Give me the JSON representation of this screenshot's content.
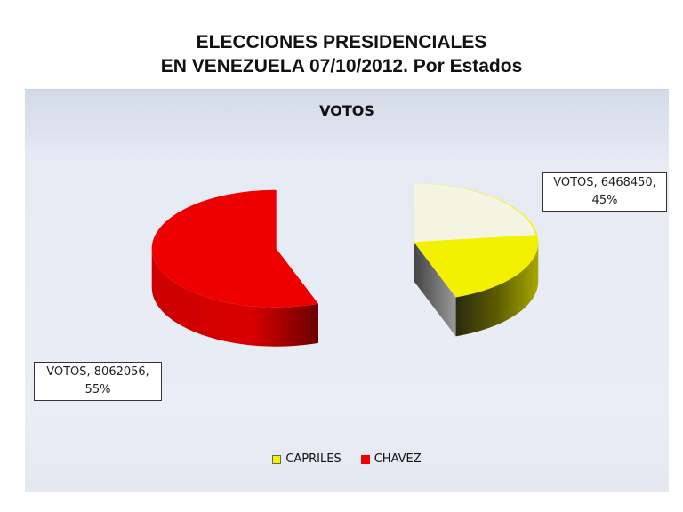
{
  "slide": {
    "title_line1": "ELECCIONES PRESIDENCIALES",
    "title_line2": "EN VENEZUELA  07/10/2012. Por Estados"
  },
  "chart_data": {
    "type": "pie",
    "title": "VOTOS",
    "series": [
      {
        "name": "VOTOS",
        "categories": [
          "CAPRILES",
          "CHAVEZ"
        ],
        "values": [
          6468450,
          8062056
        ],
        "percent": [
          45,
          55
        ],
        "labels": [
          "VOTOS, 6468450, 45%",
          "VOTOS, 8062056, 55%"
        ]
      }
    ],
    "legend_position": "bottom",
    "style": "3d-exploded"
  },
  "labels": {
    "capriles_line1": "VOTOS, 6468450,",
    "capriles_line2": "45%",
    "chavez_line1": "VOTOS, 8062056,",
    "chavez_line2": "55%"
  },
  "legend": {
    "items": [
      "CAPRILES",
      "CHAVEZ"
    ]
  },
  "colors": {
    "capriles": "#f2f200",
    "chavez": "#ee0000",
    "background": "#e8ecf4"
  }
}
